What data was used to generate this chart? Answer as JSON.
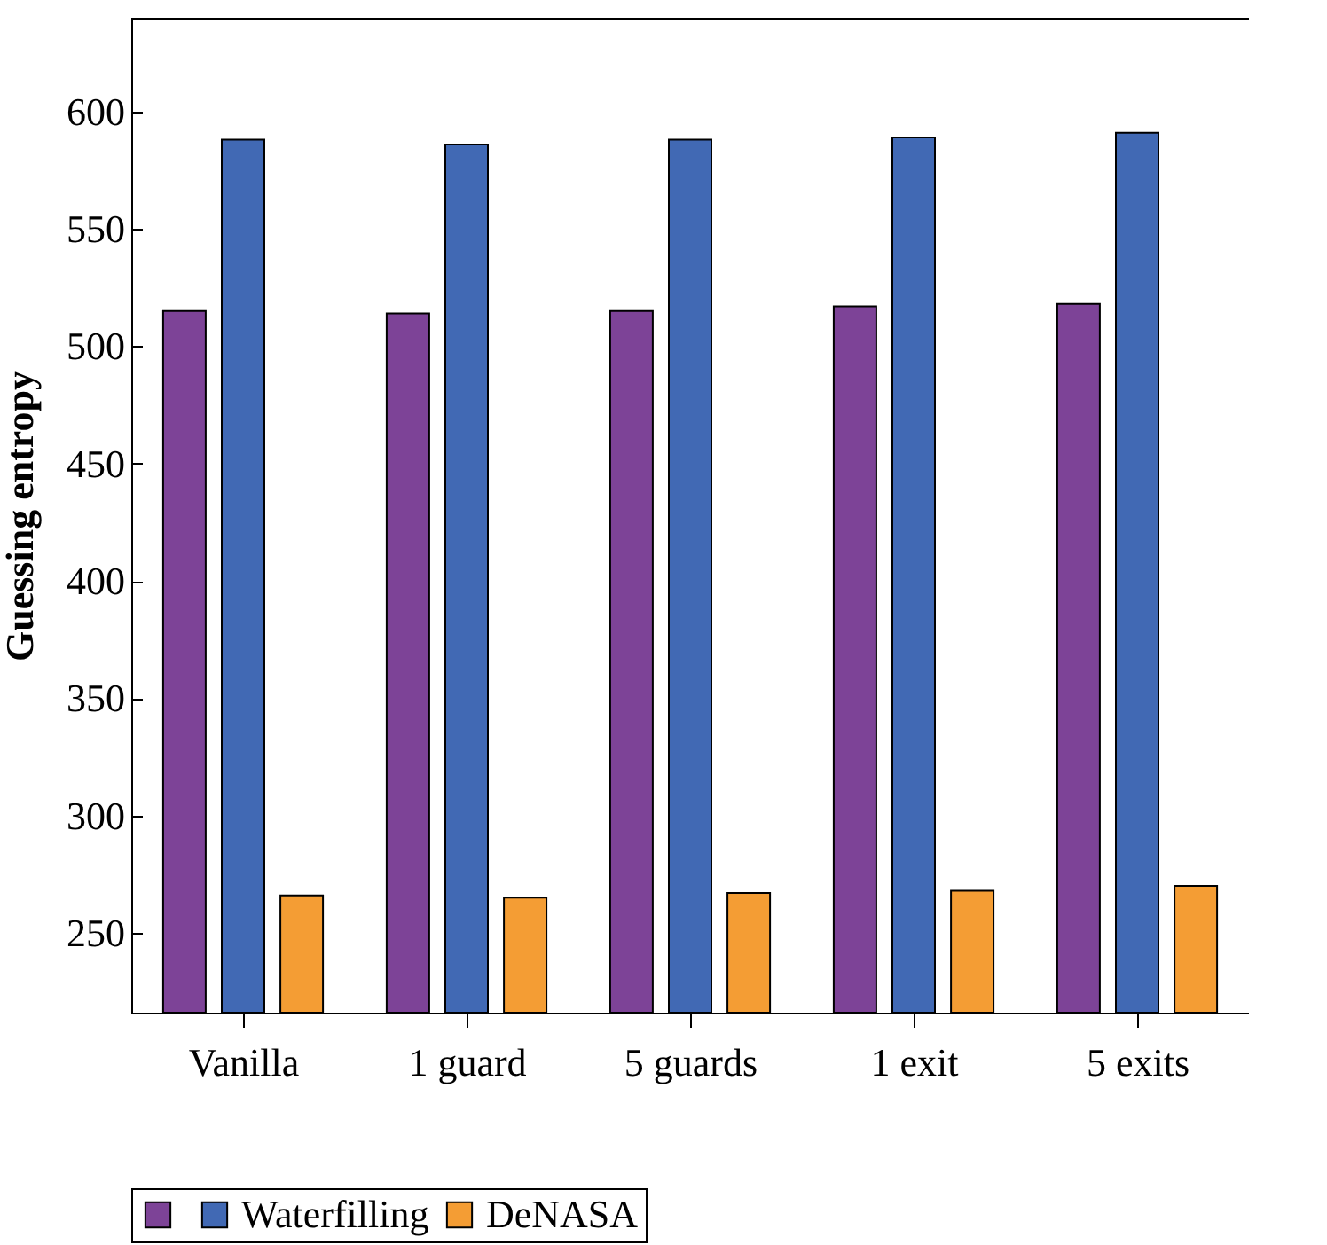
{
  "chart_data": {
    "type": "bar",
    "ylabel": "Guessing entropy",
    "categories": [
      "Vanilla",
      "1 guard",
      "5 guards",
      "1 exit",
      "5 exits"
    ],
    "series": [
      {
        "color": "#7d4397",
        "values": [
          515,
          514,
          515,
          517,
          518
        ]
      },
      {
        "name": "Waterfilling",
        "color": "#4169b4",
        "values": [
          588,
          586,
          588,
          589,
          591
        ]
      },
      {
        "name": "DeNASA",
        "color": "#f49d34",
        "values": [
          266,
          265,
          267,
          268,
          270
        ]
      }
    ],
    "ylim": [
      216,
      640
    ],
    "yticks": [
      250,
      300,
      350,
      400,
      450,
      500,
      550,
      600
    ],
    "grid": false,
    "legend": "bottom"
  }
}
